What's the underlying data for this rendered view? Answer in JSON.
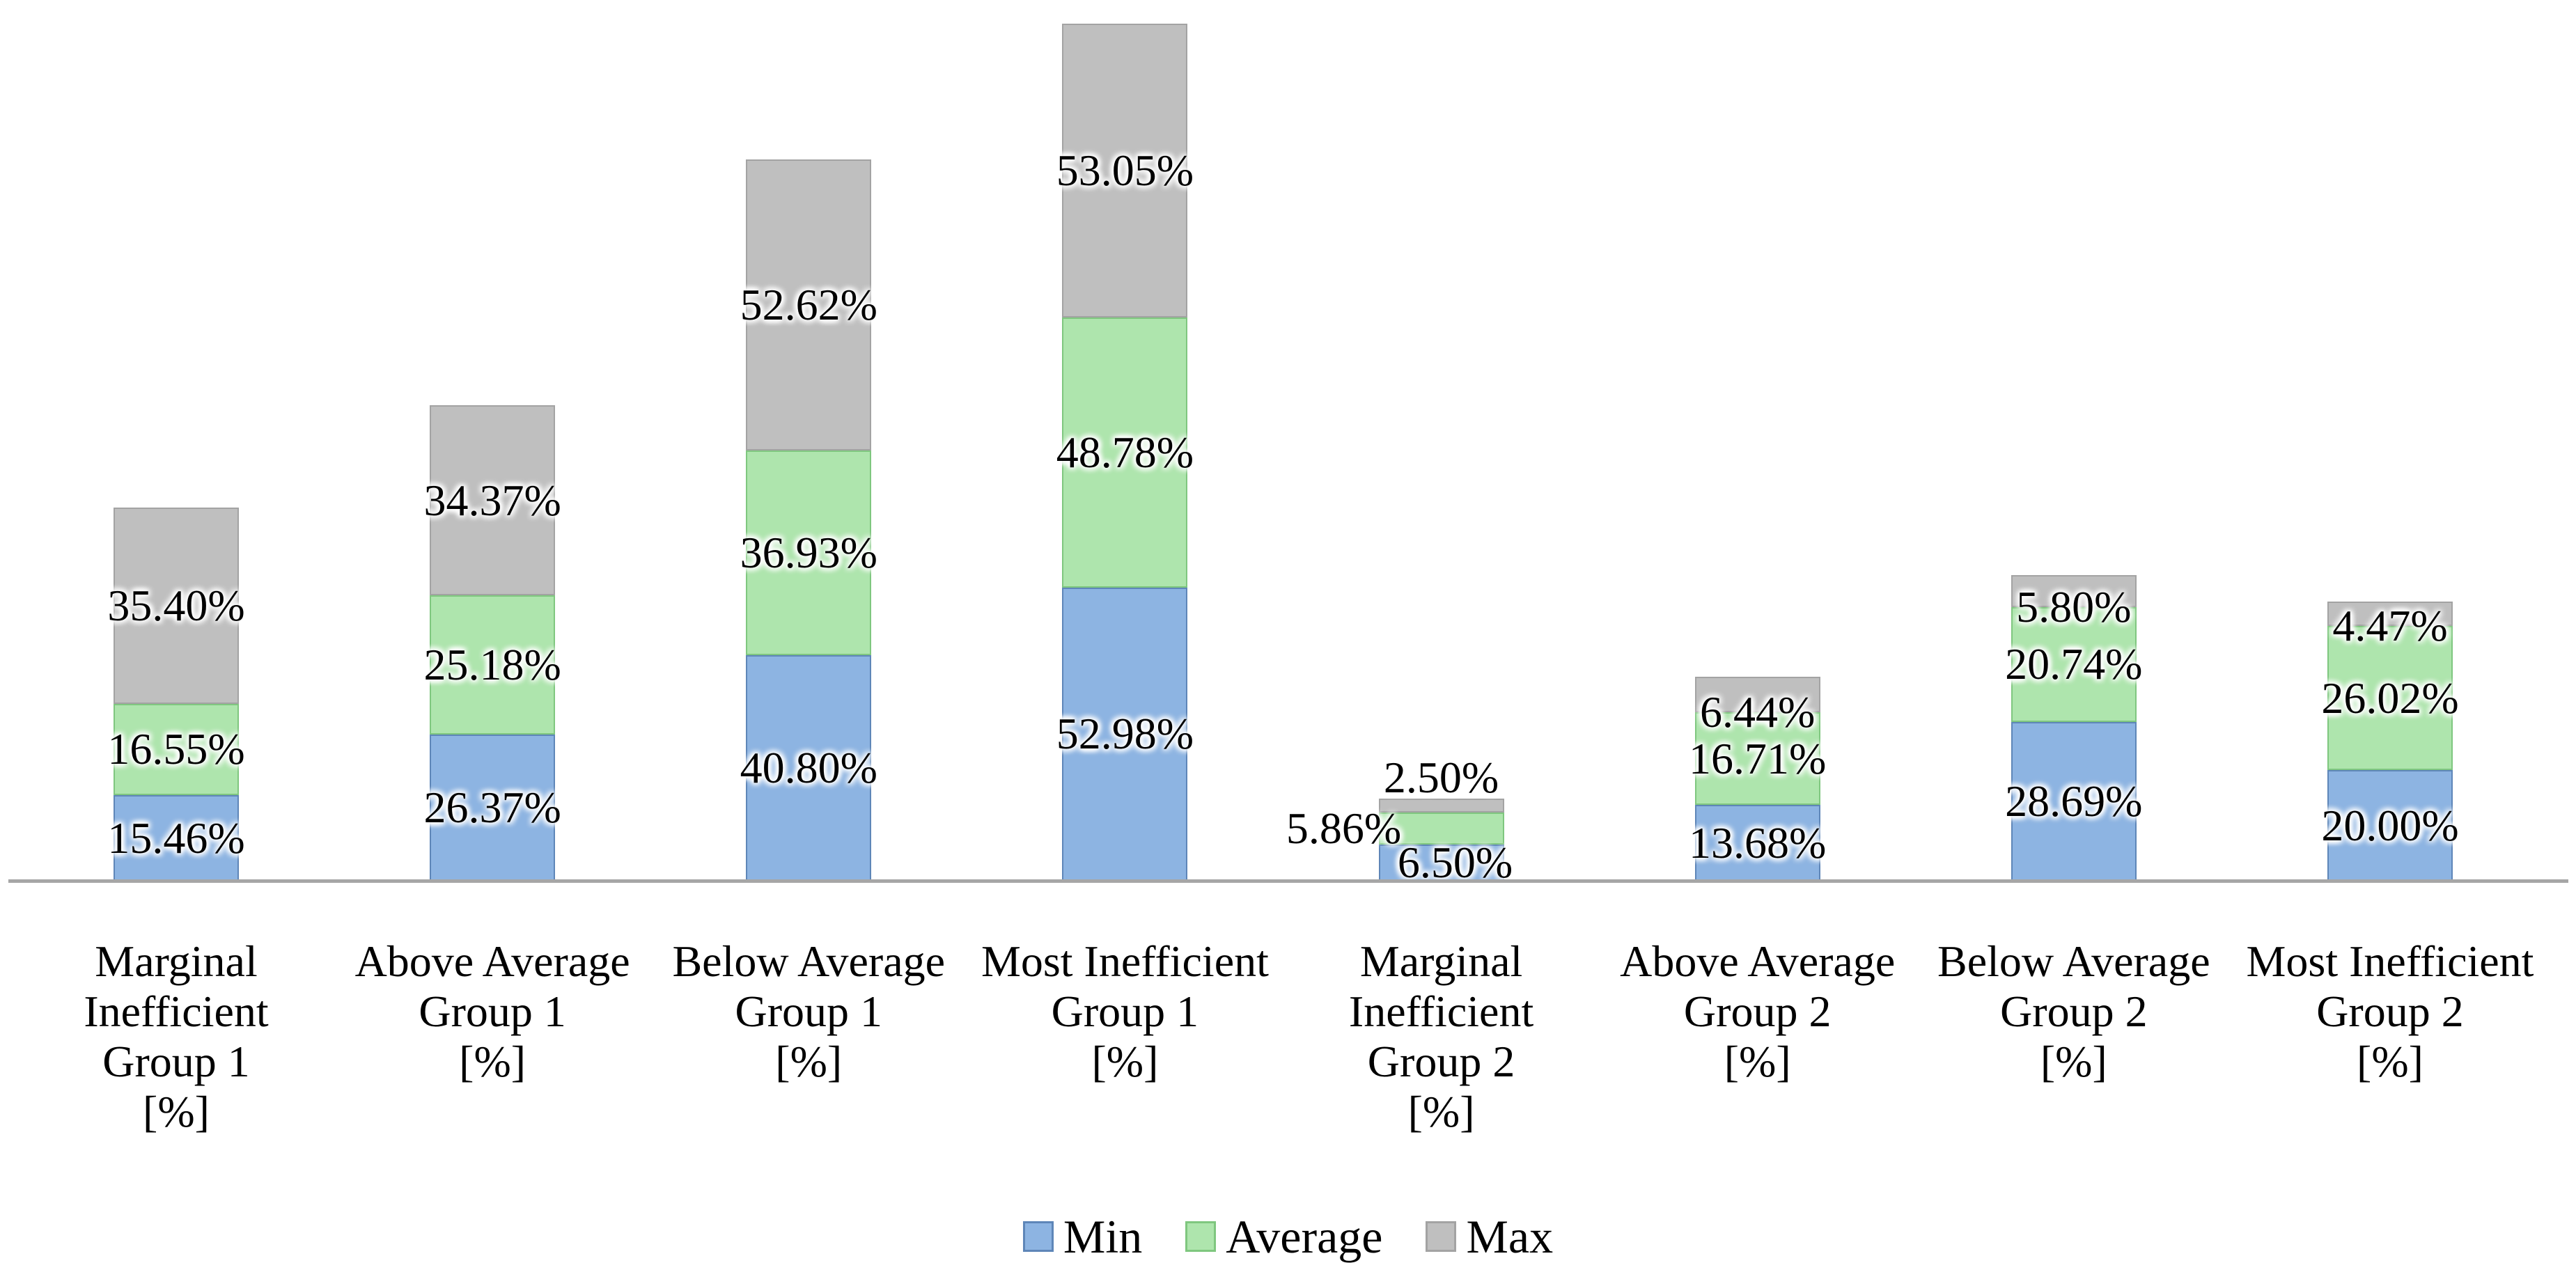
{
  "figure": {
    "background": "#FFFFFF"
  },
  "chart_data": {
    "type": "bar",
    "stacked": true,
    "orientation": "vertical",
    "title": "",
    "xlabel": "",
    "ylabel": "",
    "grid": false,
    "value_axis_visible": false,
    "baseline_color": "#A6A6A6",
    "value_unit": "%",
    "categories": [
      {
        "lines": [
          "Marginal",
          "Inefficient",
          "Group 1",
          "[%]"
        ]
      },
      {
        "lines": [
          "Above Average",
          "Group 1",
          "[%]"
        ]
      },
      {
        "lines": [
          "Below Average",
          "Group 1",
          "[%]"
        ]
      },
      {
        "lines": [
          "Most Inefficient",
          "Group 1",
          "[%]"
        ]
      },
      {
        "lines": [
          "Marginal",
          "Inefficient",
          "Group 2",
          "[%]"
        ]
      },
      {
        "lines": [
          "Above Average",
          "Group 2",
          "[%]"
        ]
      },
      {
        "lines": [
          "Below Average",
          "Group 2",
          "[%]"
        ]
      },
      {
        "lines": [
          "Most Inefficient",
          "Group 2",
          "[%]"
        ]
      }
    ],
    "series": [
      {
        "name": "Min",
        "fill": "#8DB4E2",
        "border": "#5E86B8",
        "values": [
          15.46,
          26.37,
          40.8,
          52.98,
          6.5,
          13.68,
          28.69,
          20.0
        ],
        "labels": [
          "15.46%",
          "26.37%",
          "40.80%",
          "52.98%",
          "6.50%",
          "13.68%",
          "28.69%",
          "20.00%"
        ]
      },
      {
        "name": "Average",
        "fill": "#AEE5AD",
        "border": "#7FC77F",
        "values": [
          16.55,
          25.18,
          36.93,
          48.78,
          5.86,
          16.71,
          20.74,
          26.02
        ],
        "labels": [
          "16.55%",
          "25.18%",
          "36.93%",
          "48.78%",
          "5.86%",
          "16.71%",
          "20.74%",
          "26.02%"
        ]
      },
      {
        "name": "Max",
        "fill": "#BFBFBF",
        "border": "#A3A3A3",
        "values": [
          35.4,
          34.37,
          52.62,
          53.05,
          2.5,
          6.44,
          5.8,
          4.47
        ],
        "labels": [
          "35.40%",
          "34.37%",
          "52.62%",
          "53.05%",
          "2.50%",
          "6.44%",
          "5.80%",
          "4.47%"
        ]
      }
    ],
    "legend": {
      "position": "bottom"
    },
    "label_overrides": [
      {
        "category": 4,
        "series": "Max",
        "pos": "above"
      },
      {
        "category": 4,
        "series": "Average",
        "dx": -140
      },
      {
        "category": 4,
        "series": "Min",
        "dx": 20
      }
    ]
  }
}
